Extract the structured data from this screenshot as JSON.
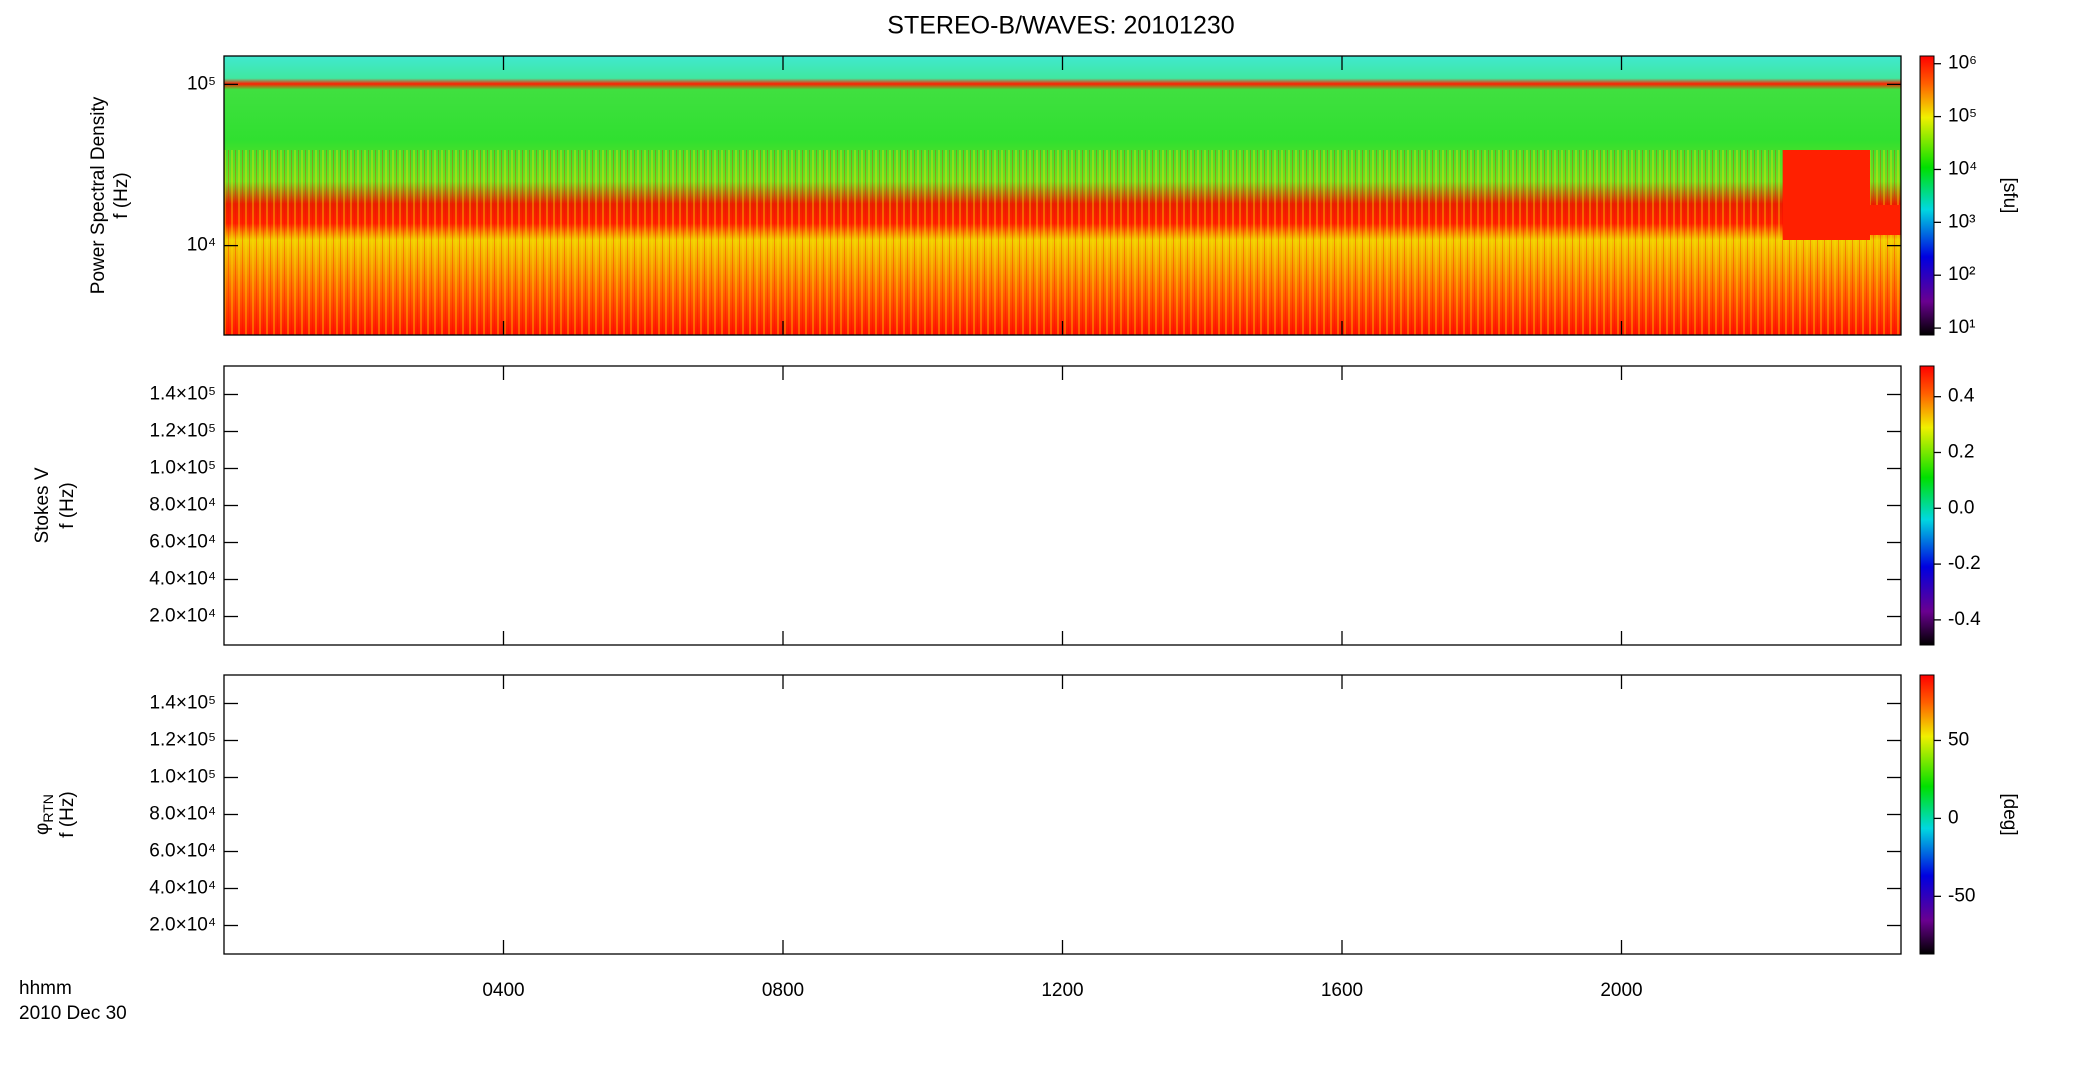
{
  "chart_data": [
    {
      "type": "spectrogram",
      "title": "STEREO-B/WAVES: 20101230",
      "ylabel": [
        "Power Spectral Density",
        "f (Hz)"
      ],
      "ylog": true,
      "ylim": [
        2790,
        150000
      ],
      "yticks": [
        {
          "value": 10000,
          "label": "10⁴"
        },
        {
          "value": 100000,
          "label": "10⁵"
        }
      ],
      "clog": true,
      "clim": [
        7.4,
        1400000
      ],
      "clabel": "[sfu]",
      "cticks": [
        {
          "value": 10,
          "label": "10¹"
        },
        {
          "value": 100,
          "label": "10²"
        },
        {
          "value": 1000,
          "label": "10³"
        },
        {
          "value": 10000,
          "label": "10⁴"
        },
        {
          "value": 100000,
          "label": "10⁵"
        },
        {
          "value": 1000000,
          "label": "10⁶"
        }
      ]
    },
    {
      "type": "spectrogram",
      "ylabel": [
        "Stokes V",
        "f (Hz)"
      ],
      "ylog": false,
      "ylim": [
        4600,
        155400
      ],
      "yticks": [
        {
          "value": 20000,
          "label": "2.0×10⁴"
        },
        {
          "value": 40000,
          "label": "4.0×10⁴"
        },
        {
          "value": 60000,
          "label": "6.0×10⁴"
        },
        {
          "value": 80000,
          "label": "8.0×10⁴"
        },
        {
          "value": 100000,
          "label": "1.0×10⁵"
        },
        {
          "value": 120000,
          "label": "1.2×10⁵"
        },
        {
          "value": 140000,
          "label": "1.4×10⁵"
        }
      ],
      "clog": false,
      "clim": [
        -0.49,
        0.51
      ],
      "cticks": [
        -0.4,
        -0.2,
        {
          "value": 0,
          "label": "0.0"
        },
        0.2,
        0.4
      ]
    },
    {
      "type": "spectrogram",
      "ylabel": [
        "f (Hz)"
      ],
      "ylabel_symbol": "φ",
      "ylabel_subscript": "RTN",
      "ylog": false,
      "ylim": [
        4600,
        155400
      ],
      "yticks": [
        {
          "value": 20000,
          "label": "2.0×10⁴"
        },
        {
          "value": 40000,
          "label": "4.0×10⁴"
        },
        {
          "value": 60000,
          "label": "6.0×10⁴"
        },
        {
          "value": 80000,
          "label": "8.0×10⁴"
        },
        {
          "value": 100000,
          "label": "1.0×10⁵"
        },
        {
          "value": 120000,
          "label": "1.2×10⁵"
        },
        {
          "value": 140000,
          "label": "1.4×10⁵"
        }
      ],
      "clog": false,
      "clim": [
        -87,
        92
      ],
      "clabel": "[deg]",
      "cticks": [
        -50,
        0,
        50
      ],
      "xlim": [
        0,
        24
      ],
      "xlabel": "hhmm",
      "date": "2010 Dec 30",
      "xticks": [
        {
          "value": 4,
          "label": "0400"
        },
        {
          "value": 8,
          "label": "0800"
        },
        {
          "value": 12,
          "label": "1200"
        },
        {
          "value": 16,
          "label": "1600"
        },
        {
          "value": 20,
          "label": "2000"
        }
      ]
    }
  ]
}
